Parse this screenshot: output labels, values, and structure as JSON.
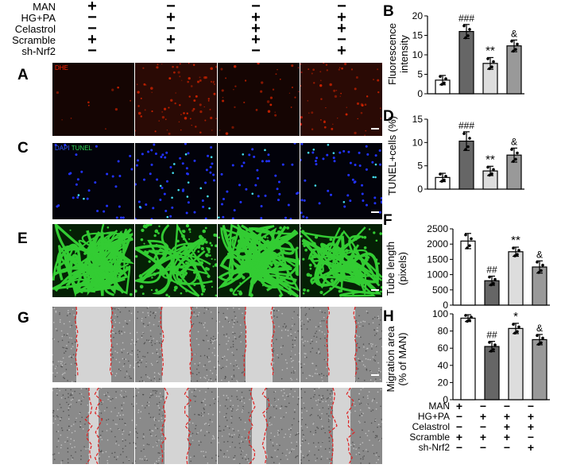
{
  "conditions": {
    "rows": [
      {
        "label": "MAN",
        "signs": [
          "+",
          "−",
          "−",
          "−"
        ]
      },
      {
        "label": "HG+PA",
        "signs": [
          "−",
          "+",
          "+",
          "+"
        ]
      },
      {
        "label": "Celastrol",
        "signs": [
          "−",
          "−",
          "+",
          "+"
        ]
      },
      {
        "label": "Scramble",
        "signs": [
          "+",
          "+",
          "+",
          "−"
        ]
      },
      {
        "label": "sh-Nrf2",
        "signs": [
          "−",
          "−",
          "−",
          "+"
        ]
      }
    ]
  },
  "image_rows": {
    "A": {
      "letter": "A",
      "tag": "DHE"
    },
    "C": {
      "letter": "C",
      "tag_dapi": "DAPI",
      "tag_tunel": "TUNEL"
    },
    "E": {
      "letter": "E"
    },
    "G": {
      "letter": "G"
    }
  },
  "colors": {
    "bar_man": "#ffffff",
    "bar_hgpa": "#666666",
    "bar_cel": "#dddddd",
    "bar_sh": "#999999",
    "dhe": "#cc2200",
    "dapi": "#2233ff",
    "tunel": "#33cc55",
    "tube": "#33cc33",
    "wound": "#e02020"
  },
  "chart_data": [
    {
      "panel": "B",
      "type": "bar",
      "ylabel": "Fluorescence intensity",
      "ylim": [
        0,
        20
      ],
      "yticks": [
        0,
        5,
        10,
        15,
        20
      ],
      "series": [
        {
          "values": [
            3.5,
            16,
            7.8,
            12.3
          ],
          "errors": [
            1.2,
            1.8,
            1.5,
            1.5
          ],
          "annotations": [
            "",
            "###",
            "**",
            "&"
          ]
        }
      ]
    },
    {
      "panel": "D",
      "type": "bar",
      "ylabel": "TUNEL+cells (%)",
      "ylim": [
        0,
        15
      ],
      "yticks": [
        0,
        5,
        10,
        15
      ],
      "series": [
        {
          "values": [
            2.5,
            10.3,
            3.9,
            7.3
          ],
          "errors": [
            0.9,
            2,
            1,
            1.5
          ],
          "annotations": [
            "",
            "###",
            "**",
            "&"
          ]
        }
      ]
    },
    {
      "panel": "F",
      "type": "bar",
      "ylabel": "Tube length (pixels)",
      "ylim": [
        0,
        2500
      ],
      "yticks": [
        0,
        500,
        1000,
        1500,
        2000,
        2500
      ],
      "series": [
        {
          "values": [
            2100,
            800,
            1750,
            1250
          ],
          "errors": [
            250,
            150,
            150,
            200
          ],
          "annotations": [
            "",
            "##",
            "**",
            "&"
          ]
        }
      ]
    },
    {
      "panel": "H",
      "type": "bar",
      "ylabel": "Migration area (% of MAN)",
      "ylim": [
        0,
        100
      ],
      "yticks": [
        0,
        20,
        40,
        60,
        80,
        100
      ],
      "series": [
        {
          "values": [
            95,
            62,
            83,
            70
          ],
          "errors": [
            4,
            6,
            6,
            6
          ],
          "annotations": [
            "",
            "##",
            "*",
            "&"
          ]
        }
      ]
    }
  ],
  "bottom_table": {
    "rows": [
      {
        "label": "MAN",
        "signs": [
          "+",
          "−",
          "−",
          "−"
        ]
      },
      {
        "label": "HG+PA",
        "signs": [
          "−",
          "+",
          "+",
          "+"
        ]
      },
      {
        "label": "Celastrol",
        "signs": [
          "−",
          "−",
          "+",
          "+"
        ]
      },
      {
        "label": "Scramble",
        "signs": [
          "+",
          "+",
          "+",
          "−"
        ]
      },
      {
        "label": "sh-Nrf2",
        "signs": [
          "−",
          "−",
          "−",
          "+"
        ]
      }
    ]
  }
}
